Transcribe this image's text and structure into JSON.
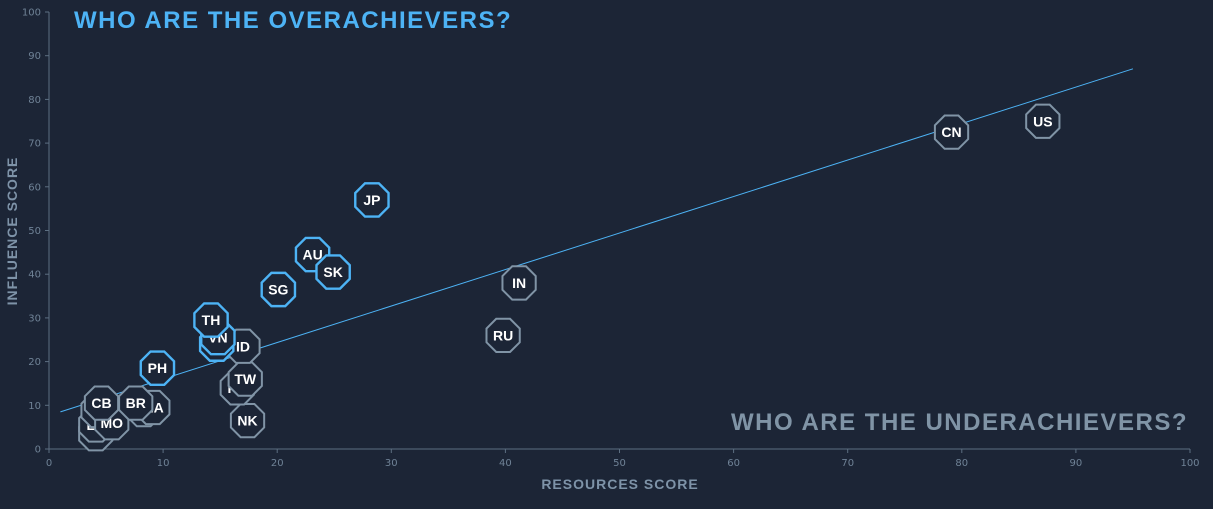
{
  "chart_data": {
    "type": "scatter",
    "title": "WHO ARE THE OVERACHIEVERS?",
    "subtitle": "WHO ARE THE UNDERACHIEVERS?",
    "xlabel": "RESOURCES SCORE",
    "ylabel": "INFLUENCE SCORE",
    "xlim": [
      0,
      100
    ],
    "ylim": [
      0,
      100
    ],
    "x_ticks": [
      "0",
      "10",
      "20",
      "30",
      "40",
      "50",
      "60",
      "70",
      "80",
      "90",
      "100"
    ],
    "y_ticks": [
      "0",
      "10",
      "20",
      "30",
      "40",
      "50",
      "60",
      "70",
      "80",
      "90",
      "100"
    ],
    "grid": false,
    "colors": {
      "background": "#1c2536",
      "overachiever": "#4db3f5",
      "underachiever": "#8094a6",
      "trendline": "#4db3f5",
      "title": "#4db3f5",
      "subtitle": "#8094a6"
    },
    "trendline": {
      "x": [
        1,
        95
      ],
      "y": [
        8.5,
        87
      ]
    },
    "points": [
      {
        "label": "KH",
        "x": 4.1,
        "y": 3.5,
        "group": "under"
      },
      {
        "label": "LA",
        "x": 4.1,
        "y": 5.5,
        "group": "under"
      },
      {
        "label": "BD",
        "x": 4.3,
        "y": 8.8,
        "group": "under"
      },
      {
        "label": "MO",
        "x": 5.5,
        "y": 6.0,
        "group": "under"
      },
      {
        "label": "CB",
        "x": 4.6,
        "y": 10.5,
        "group": "under"
      },
      {
        "label": "SA",
        "x": 8.3,
        "y": 9.0,
        "group": "under"
      },
      {
        "label": "MA",
        "x": 9.1,
        "y": 9.5,
        "group": "under"
      },
      {
        "label": "BR",
        "x": 7.6,
        "y": 10.5,
        "group": "under"
      },
      {
        "label": "NK",
        "x": 17.4,
        "y": 6.5,
        "group": "under"
      },
      {
        "label": "PK",
        "x": 16.5,
        "y": 14.0,
        "group": "under"
      },
      {
        "label": "TW",
        "x": 17.2,
        "y": 16.0,
        "group": "under"
      },
      {
        "label": "ID",
        "x": 17.0,
        "y": 23.5,
        "group": "under"
      },
      {
        "label": "RU",
        "x": 39.8,
        "y": 26.0,
        "group": "under"
      },
      {
        "label": "IN",
        "x": 41.2,
        "y": 38.0,
        "group": "under"
      },
      {
        "label": "CN",
        "x": 79.1,
        "y": 72.5,
        "group": "under"
      },
      {
        "label": "US",
        "x": 87.1,
        "y": 75.0,
        "group": "under"
      },
      {
        "label": "PH",
        "x": 9.5,
        "y": 18.5,
        "group": "over"
      },
      {
        "label": "MY",
        "x": 14.7,
        "y": 24.0,
        "group": "over"
      },
      {
        "label": "VN",
        "x": 14.8,
        "y": 25.5,
        "group": "over"
      },
      {
        "label": "TH",
        "x": 14.2,
        "y": 29.5,
        "group": "over"
      },
      {
        "label": "SG",
        "x": 20.1,
        "y": 36.5,
        "group": "over"
      },
      {
        "label": "AU",
        "x": 23.1,
        "y": 44.5,
        "group": "over"
      },
      {
        "label": "SK",
        "x": 24.9,
        "y": 40.5,
        "group": "over"
      },
      {
        "label": "JP",
        "x": 28.3,
        "y": 57.0,
        "group": "over"
      }
    ]
  }
}
